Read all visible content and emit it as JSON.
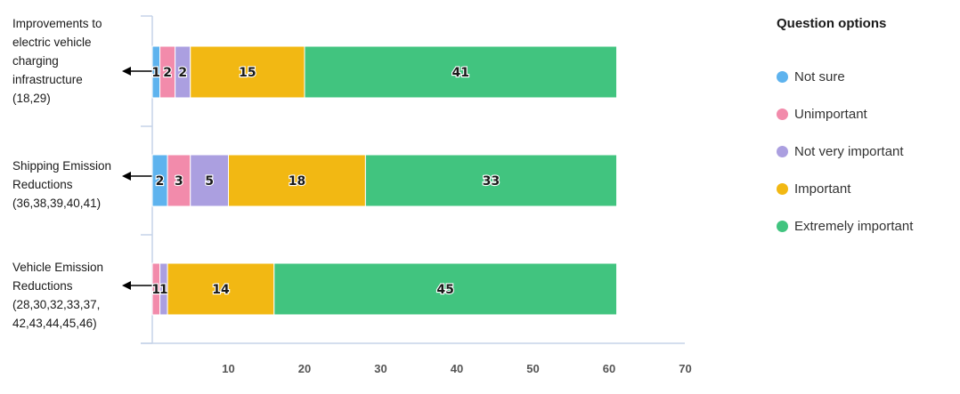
{
  "chart_data": {
    "type": "bar",
    "orientation": "horizontal",
    "stacked": true,
    "categories": [
      "Improvements to\nelectric vehicle\ncharging\ninfrastructure\n(18,29)",
      "Shipping Emission\nReductions\n(36,38,39,40,41)",
      "Vehicle Emission\nReductions\n(28,30,32,33,37,\n42,43,44,45,46)"
    ],
    "series": [
      {
        "name": "Not sure",
        "color": "#5eb3ee",
        "values": [
          1,
          2,
          0
        ]
      },
      {
        "name": "Unimportant",
        "color": "#f28bab",
        "values": [
          2,
          3,
          1
        ]
      },
      {
        "name": "Not very important",
        "color": "#ab9fe0",
        "values": [
          2,
          5,
          1
        ]
      },
      {
        "name": "Important",
        "color": "#f2b813",
        "values": [
          15,
          18,
          14
        ]
      },
      {
        "name": "Extremely important",
        "color": "#41c47f",
        "values": [
          41,
          33,
          45
        ]
      }
    ],
    "xticks": [
      10,
      20,
      30,
      40,
      50,
      60,
      70
    ],
    "xlim": [
      0,
      70
    ],
    "legend_title": "Question options",
    "legend_position": "right",
    "grid": false
  }
}
